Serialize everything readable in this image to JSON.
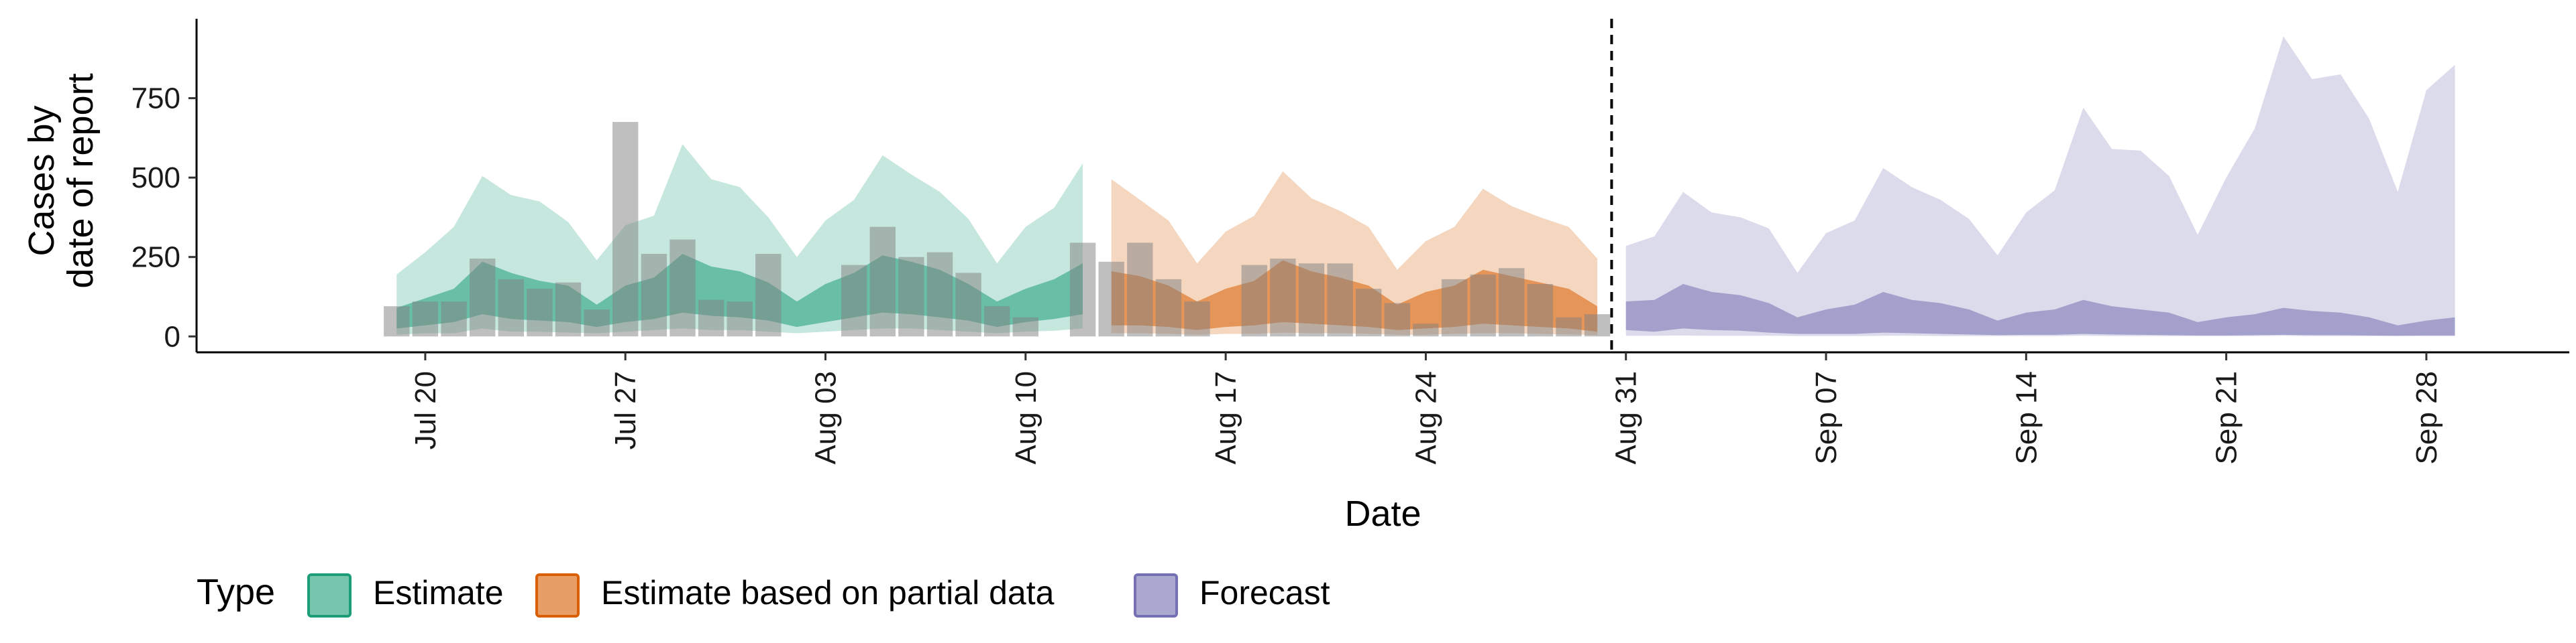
{
  "chart_data": {
    "type": "area",
    "xlabel": "Date",
    "ylabel_lines": [
      "Cases by",
      "date of report"
    ],
    "x_range": [
      "2020-07-12",
      "2020-10-03"
    ],
    "ylim": [
      -50,
      1000
    ],
    "y_ticks": [
      0,
      250,
      500,
      750
    ],
    "x_ticks": [
      {
        "date": "2020-07-20",
        "label": "Jul 20"
      },
      {
        "date": "2020-07-27",
        "label": "Jul 27"
      },
      {
        "date": "2020-08-03",
        "label": "Aug 03"
      },
      {
        "date": "2020-08-10",
        "label": "Aug 10"
      },
      {
        "date": "2020-08-17",
        "label": "Aug 17"
      },
      {
        "date": "2020-08-24",
        "label": "Aug 24"
      },
      {
        "date": "2020-08-31",
        "label": "Aug 31"
      },
      {
        "date": "2020-09-07",
        "label": "Sep 07"
      },
      {
        "date": "2020-09-14",
        "label": "Sep 14"
      },
      {
        "date": "2020-09-21",
        "label": "Sep 21"
      },
      {
        "date": "2020-09-28",
        "label": "Sep 28"
      }
    ],
    "vline_date": "2020-08-30",
    "legend": {
      "title": "Type",
      "position": "bottom",
      "items": [
        {
          "label": "Estimate",
          "color": "#1b9e77"
        },
        {
          "label": "Estimate based on partial data",
          "color": "#d95f02"
        },
        {
          "label": "Forecast",
          "color": "#7570b3"
        }
      ]
    },
    "observed": {
      "color": "#808080",
      "dates": [
        "2020-07-19",
        "2020-07-20",
        "2020-07-21",
        "2020-07-22",
        "2020-07-23",
        "2020-07-24",
        "2020-07-25",
        "2020-07-26",
        "2020-07-27",
        "2020-07-28",
        "2020-07-29",
        "2020-07-30",
        "2020-07-31",
        "2020-08-01",
        "2020-08-02",
        "2020-08-03",
        "2020-08-04",
        "2020-08-05",
        "2020-08-06",
        "2020-08-07",
        "2020-08-08",
        "2020-08-09",
        "2020-08-10",
        "2020-08-11",
        "2020-08-12",
        "2020-08-13",
        "2020-08-14",
        "2020-08-15",
        "2020-08-16",
        "2020-08-17",
        "2020-08-18",
        "2020-08-19",
        "2020-08-20",
        "2020-08-21",
        "2020-08-22",
        "2020-08-23",
        "2020-08-24",
        "2020-08-25",
        "2020-08-26",
        "2020-08-27",
        "2020-08-28",
        "2020-08-29",
        "2020-08-30"
      ],
      "values": [
        95,
        110,
        110,
        245,
        180,
        150,
        170,
        85,
        675,
        260,
        305,
        115,
        110,
        260,
        0,
        0,
        225,
        345,
        250,
        265,
        200,
        95,
        60,
        0,
        295,
        235,
        295,
        180,
        110,
        0,
        225,
        245,
        230,
        230,
        150,
        105,
        40,
        180,
        195,
        215,
        165,
        60,
        70
      ]
    },
    "series": [
      {
        "name": "Estimate",
        "color": "#1b9e77",
        "dates": [
          "2020-07-19",
          "2020-07-20",
          "2020-07-21",
          "2020-07-22",
          "2020-07-23",
          "2020-07-24",
          "2020-07-25",
          "2020-07-26",
          "2020-07-27",
          "2020-07-28",
          "2020-07-29",
          "2020-07-30",
          "2020-07-31",
          "2020-08-01",
          "2020-08-02",
          "2020-08-03",
          "2020-08-04",
          "2020-08-05",
          "2020-08-06",
          "2020-08-07",
          "2020-08-08",
          "2020-08-09",
          "2020-08-10",
          "2020-08-11",
          "2020-08-12"
        ],
        "outer_upper": [
          195,
          265,
          345,
          505,
          445,
          425,
          360,
          240,
          350,
          380,
          605,
          495,
          470,
          375,
          250,
          365,
          430,
          570,
          510,
          455,
          370,
          230,
          345,
          405,
          545
        ],
        "outer_lower": [
          5,
          10,
          10,
          25,
          15,
          15,
          12,
          10,
          15,
          20,
          25,
          20,
          20,
          15,
          10,
          15,
          20,
          25,
          25,
          20,
          15,
          10,
          15,
          18,
          25
        ],
        "inner_upper": [
          90,
          120,
          150,
          235,
          200,
          175,
          160,
          100,
          160,
          185,
          260,
          220,
          205,
          170,
          110,
          165,
          200,
          255,
          235,
          210,
          165,
          110,
          150,
          180,
          230
        ],
        "inner_lower": [
          25,
          35,
          45,
          70,
          55,
          50,
          45,
          30,
          45,
          55,
          75,
          65,
          60,
          50,
          30,
          45,
          60,
          75,
          70,
          60,
          50,
          30,
          45,
          55,
          70
        ]
      },
      {
        "name": "Estimate based on partial data",
        "color": "#d95f02",
        "dates": [
          "2020-08-13",
          "2020-08-14",
          "2020-08-15",
          "2020-08-16",
          "2020-08-17",
          "2020-08-18",
          "2020-08-19",
          "2020-08-20",
          "2020-08-21",
          "2020-08-22",
          "2020-08-23",
          "2020-08-24",
          "2020-08-25",
          "2020-08-26",
          "2020-08-27",
          "2020-08-28",
          "2020-08-29",
          "2020-08-30"
        ],
        "outer_upper": [
          495,
          430,
          365,
          230,
          330,
          380,
          520,
          435,
          395,
          345,
          210,
          300,
          345,
          465,
          410,
          375,
          345,
          245
        ],
        "outer_lower": [
          10,
          10,
          8,
          5,
          8,
          8,
          12,
          10,
          10,
          8,
          5,
          5,
          8,
          10,
          10,
          8,
          6,
          4
        ],
        "inner_upper": [
          205,
          190,
          160,
          110,
          150,
          175,
          240,
          205,
          185,
          160,
          100,
          140,
          160,
          210,
          190,
          170,
          150,
          95
        ],
        "inner_lower": [
          35,
          35,
          30,
          20,
          30,
          35,
          45,
          40,
          35,
          30,
          20,
          25,
          30,
          40,
          35,
          30,
          25,
          15
        ]
      },
      {
        "name": "Forecast",
        "color": "#7570b3",
        "dates": [
          "2020-08-31",
          "2020-09-01",
          "2020-09-02",
          "2020-09-03",
          "2020-09-04",
          "2020-09-05",
          "2020-09-06",
          "2020-09-07",
          "2020-09-08",
          "2020-09-09",
          "2020-09-10",
          "2020-09-11",
          "2020-09-12",
          "2020-09-13",
          "2020-09-14",
          "2020-09-15",
          "2020-09-16",
          "2020-09-17",
          "2020-09-18",
          "2020-09-19",
          "2020-09-20",
          "2020-09-21",
          "2020-09-22",
          "2020-09-23",
          "2020-09-24",
          "2020-09-25",
          "2020-09-26",
          "2020-09-27",
          "2020-09-28",
          "2020-09-29"
        ],
        "outer_upper": [
          285,
          315,
          455,
          390,
          375,
          340,
          200,
          325,
          365,
          530,
          470,
          430,
          370,
          255,
          390,
          460,
          720,
          590,
          585,
          505,
          320,
          500,
          655,
          945,
          810,
          825,
          685,
          455,
          775,
          855
        ],
        "outer_lower": [
          2,
          2,
          3,
          2,
          2,
          2,
          1,
          1,
          1,
          2,
          2,
          1,
          1,
          1,
          1,
          1,
          2,
          1,
          1,
          1,
          1,
          1,
          1,
          2,
          1,
          1,
          1,
          1,
          1,
          1
        ],
        "inner_upper": [
          110,
          115,
          165,
          140,
          130,
          105,
          60,
          85,
          100,
          140,
          115,
          105,
          85,
          50,
          75,
          85,
          115,
          95,
          85,
          75,
          45,
          60,
          70,
          90,
          80,
          75,
          60,
          35,
          50,
          60
        ],
        "inner_lower": [
          20,
          15,
          25,
          20,
          18,
          12,
          8,
          8,
          8,
          12,
          10,
          8,
          6,
          4,
          5,
          5,
          8,
          6,
          5,
          4,
          3,
          3,
          4,
          5,
          4,
          4,
          3,
          2,
          3,
          3
        ]
      }
    ]
  }
}
